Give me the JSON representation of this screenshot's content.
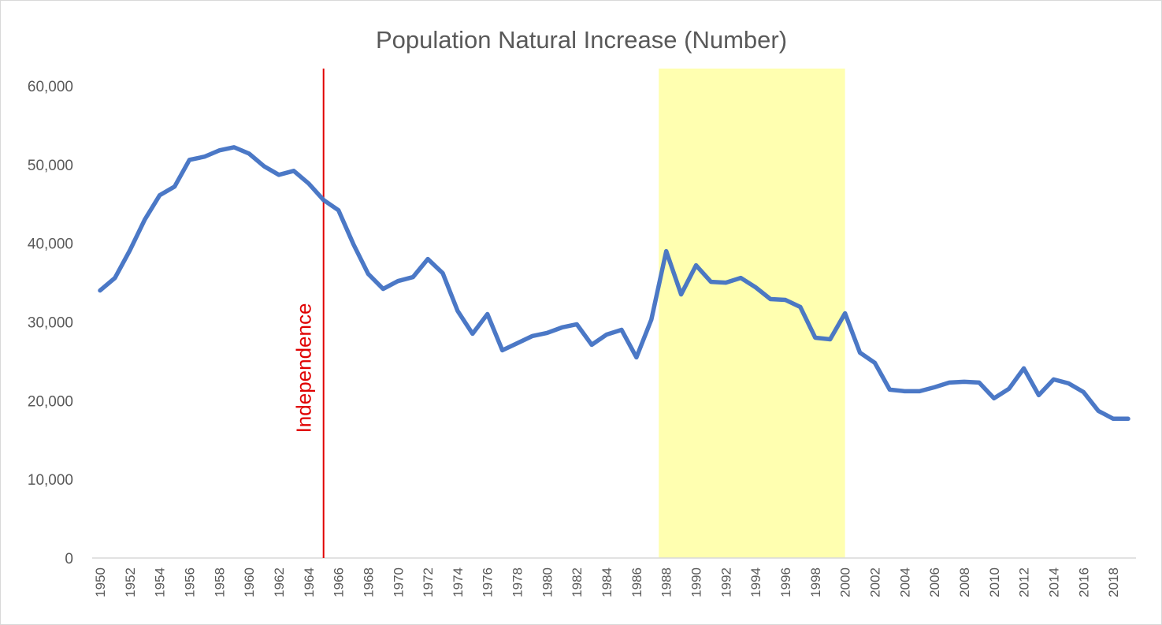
{
  "chart_data": {
    "type": "line",
    "title": "Population Natural Increase (Number)",
    "xlabel": "",
    "ylabel": "",
    "ylim": [
      0,
      60000
    ],
    "yticks": [
      0,
      10000,
      20000,
      30000,
      40000,
      50000,
      60000
    ],
    "ytick_labels": [
      "0",
      "10,000",
      "20,000",
      "30,000",
      "40,000",
      "50,000",
      "60,000"
    ],
    "grid": false,
    "legend": "none",
    "x": [
      1950,
      1951,
      1952,
      1953,
      1954,
      1955,
      1956,
      1957,
      1958,
      1959,
      1960,
      1961,
      1962,
      1963,
      1964,
      1965,
      1966,
      1967,
      1968,
      1969,
      1970,
      1971,
      1972,
      1973,
      1974,
      1975,
      1976,
      1977,
      1978,
      1979,
      1980,
      1981,
      1982,
      1983,
      1984,
      1985,
      1986,
      1987,
      1988,
      1989,
      1990,
      1991,
      1992,
      1993,
      1994,
      1995,
      1996,
      1997,
      1998,
      1999,
      2000,
      2001,
      2002,
      2003,
      2004,
      2005,
      2006,
      2007,
      2008,
      2009,
      2010,
      2011,
      2012,
      2013,
      2014,
      2015,
      2016,
      2017,
      2018,
      2019
    ],
    "xtick_labels": [
      "1950",
      "1952",
      "1954",
      "1956",
      "1958",
      "1960",
      "1962",
      "1964",
      "1966",
      "1968",
      "1970",
      "1972",
      "1974",
      "1976",
      "1978",
      "1980",
      "1982",
      "1984",
      "1986",
      "1988",
      "1990",
      "1992",
      "1994",
      "1996",
      "1998",
      "2000",
      "2002",
      "2004",
      "2006",
      "2008",
      "2010",
      "2012",
      "2014",
      "2016",
      "2018"
    ],
    "series": [
      {
        "color": "#4472c4",
        "values": [
          34000,
          35600,
          39100,
          43000,
          46100,
          47200,
          50600,
          51000,
          51800,
          52200,
          51400,
          49800,
          48700,
          49200,
          47600,
          45500,
          44200,
          39900,
          36100,
          34200,
          35200,
          35700,
          38000,
          36200,
          31400,
          28500,
          31000,
          26400,
          27300,
          28200,
          28600,
          29300,
          29700,
          27100,
          28400,
          29000,
          25500,
          30300,
          39000,
          33500,
          37200,
          35100,
          35000,
          35600,
          34400,
          32900,
          32800,
          31900,
          28000,
          27800,
          31100,
          26100,
          24800,
          21400,
          21200,
          21200,
          21700,
          22300,
          22400,
          22300,
          20300,
          21500,
          24100,
          20700,
          22700,
          22200,
          21100,
          18700,
          17700,
          17700
        ]
      }
    ],
    "annotations": [
      {
        "type": "vertical-line",
        "x": 1965,
        "label": "Independence",
        "color": "#e00000"
      },
      {
        "type": "shaded-region",
        "x_start": 1988,
        "x_end": 2000,
        "color": "#ffffb0"
      }
    ]
  }
}
